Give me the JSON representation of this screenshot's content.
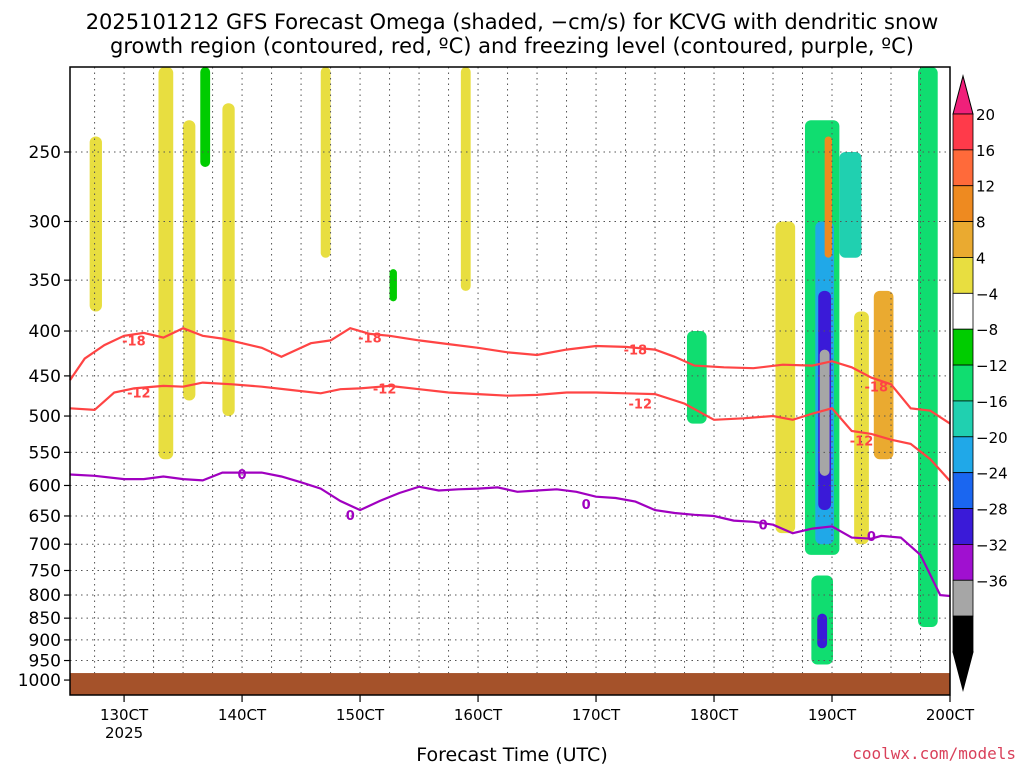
{
  "chart_data": {
    "type": "heatmap",
    "title_line1": "2025101212 GFS Forecast Omega (shaded, −cm/s) for KCVG with dendritic snow",
    "title_line2": "growth region (contoured, red, ºC) and freezing level (contoured, purple, ºC)",
    "xlabel": "Forecast Time (UTC)",
    "credit": "coolwx.com/models",
    "x_ticks": [
      {
        "label": "130CT",
        "sub": "2025",
        "hour": 12
      },
      {
        "label": "140CT",
        "sub": "",
        "hour": 36
      },
      {
        "label": "150CT",
        "sub": "",
        "hour": 60
      },
      {
        "label": "160CT",
        "sub": "",
        "hour": 84
      },
      {
        "label": "170CT",
        "sub": "",
        "hour": 108
      },
      {
        "label": "180CT",
        "sub": "",
        "hour": 132
      },
      {
        "label": "190CT",
        "sub": "",
        "hour": 156
      },
      {
        "label": "200CT",
        "sub": "",
        "hour": 180
      }
    ],
    "x_range_hours": [
      1,
      180
    ],
    "y_ticks": [
      "250",
      "300",
      "350",
      "400",
      "450",
      "500",
      "550",
      "600",
      "650",
      "700",
      "750",
      "800",
      "850",
      "900",
      "950",
      "1000"
    ],
    "y_range_hPa": [
      200,
      1040
    ],
    "colorbar": {
      "labels": [
        "20",
        "16",
        "12",
        "8",
        "4",
        "−4",
        "−8",
        "−12",
        "−16",
        "−20",
        "−24",
        "−28",
        "−32",
        "−36"
      ],
      "colors": [
        "#ff3a4a",
        "#ff6a3a",
        "#ee8a20",
        "#eaaa30",
        "#e8de40",
        "#ffffff",
        "#00cc00",
        "#10dd70",
        "#20d0b0",
        "#20a8e8",
        "#1a66f0",
        "#3a1ad8",
        "#a010d0",
        "#a6a6a6",
        "#000000"
      ],
      "top_arrow_color": "#f0207a",
      "bottom_arrow_color": "#000000"
    },
    "contours": [
      {
        "name": "dgz-minus18",
        "color": "#ff4444",
        "label": "-18",
        "points": [
          [
            1,
            455
          ],
          [
            4,
            430
          ],
          [
            8,
            415
          ],
          [
            12,
            405
          ],
          [
            16,
            402
          ],
          [
            20,
            407
          ],
          [
            24,
            397
          ],
          [
            28,
            405
          ],
          [
            32,
            408
          ],
          [
            36,
            413
          ],
          [
            40,
            418
          ],
          [
            44,
            428
          ],
          [
            46,
            423
          ],
          [
            50,
            413
          ],
          [
            54,
            410
          ],
          [
            58,
            397
          ],
          [
            62,
            403
          ],
          [
            66,
            405
          ],
          [
            72,
            410
          ],
          [
            78,
            414
          ],
          [
            84,
            418
          ],
          [
            90,
            423
          ],
          [
            96,
            426
          ],
          [
            102,
            420
          ],
          [
            108,
            416
          ],
          [
            114,
            417
          ],
          [
            120,
            420
          ],
          [
            124,
            428
          ],
          [
            128,
            438
          ],
          [
            134,
            440
          ],
          [
            140,
            441
          ],
          [
            146,
            437
          ],
          [
            152,
            438
          ],
          [
            156,
            433
          ],
          [
            160,
            440
          ],
          [
            164,
            452
          ],
          [
            168,
            460
          ],
          [
            172,
            490
          ],
          [
            176,
            493
          ],
          [
            180,
            510
          ]
        ],
        "label_points": [
          [
            14,
            410
          ],
          [
            62,
            407
          ],
          [
            116,
            420
          ],
          [
            165,
            463
          ]
        ]
      },
      {
        "name": "dgz-minus12",
        "color": "#ff4444",
        "label": "-12",
        "points": [
          [
            1,
            490
          ],
          [
            6,
            492
          ],
          [
            10,
            470
          ],
          [
            14,
            465
          ],
          [
            20,
            462
          ],
          [
            24,
            463
          ],
          [
            28,
            458
          ],
          [
            34,
            460
          ],
          [
            40,
            463
          ],
          [
            46,
            467
          ],
          [
            52,
            471
          ],
          [
            56,
            466
          ],
          [
            60,
            465
          ],
          [
            66,
            462
          ],
          [
            72,
            466
          ],
          [
            78,
            470
          ],
          [
            84,
            472
          ],
          [
            90,
            474
          ],
          [
            96,
            473
          ],
          [
            102,
            470
          ],
          [
            108,
            470
          ],
          [
            114,
            471
          ],
          [
            120,
            472
          ],
          [
            126,
            484
          ],
          [
            132,
            505
          ],
          [
            138,
            503
          ],
          [
            144,
            500
          ],
          [
            148,
            505
          ],
          [
            152,
            497
          ],
          [
            156,
            490
          ],
          [
            160,
            520
          ],
          [
            164,
            524
          ],
          [
            168,
            532
          ],
          [
            172,
            538
          ],
          [
            176,
            560
          ],
          [
            180,
            593
          ]
        ],
        "label_points": [
          [
            15,
            470
          ],
          [
            65,
            465
          ],
          [
            117,
            484
          ],
          [
            162,
            533
          ]
        ]
      },
      {
        "name": "freezing-level-0",
        "color": "#a000c0",
        "label": "0",
        "points": [
          [
            1,
            583
          ],
          [
            6,
            585
          ],
          [
            12,
            590
          ],
          [
            16,
            590
          ],
          [
            20,
            586
          ],
          [
            24,
            590
          ],
          [
            28,
            592
          ],
          [
            32,
            580
          ],
          [
            36,
            580
          ],
          [
            40,
            580
          ],
          [
            44,
            586
          ],
          [
            48,
            595
          ],
          [
            52,
            605
          ],
          [
            56,
            625
          ],
          [
            60,
            640
          ],
          [
            64,
            625
          ],
          [
            68,
            612
          ],
          [
            72,
            602
          ],
          [
            76,
            608
          ],
          [
            80,
            606
          ],
          [
            84,
            605
          ],
          [
            88,
            603
          ],
          [
            92,
            610
          ],
          [
            96,
            608
          ],
          [
            100,
            606
          ],
          [
            104,
            610
          ],
          [
            108,
            618
          ],
          [
            112,
            620
          ],
          [
            116,
            626
          ],
          [
            120,
            640
          ],
          [
            124,
            645
          ],
          [
            128,
            648
          ],
          [
            132,
            650
          ],
          [
            136,
            658
          ],
          [
            140,
            660
          ],
          [
            144,
            665
          ],
          [
            148,
            680
          ],
          [
            152,
            672
          ],
          [
            156,
            668
          ],
          [
            160,
            688
          ],
          [
            164,
            690
          ],
          [
            166,
            685
          ],
          [
            170,
            688
          ],
          [
            174,
            720
          ],
          [
            178,
            800
          ],
          [
            180,
            802
          ]
        ],
        "label_points": [
          [
            36,
            582
          ],
          [
            58,
            648
          ],
          [
            106,
            630
          ],
          [
            142,
            665
          ],
          [
            164,
            685
          ]
        ]
      }
    ],
    "omega_regions": [
      {
        "name": "strong-lift-cell-190ct",
        "value": -34,
        "t0": 153.5,
        "t1": 155.5,
        "p0": 420,
        "p1": 585
      },
      {
        "name": "lift-cell-core-190ct",
        "value": -26,
        "t0": 153.2,
        "t1": 155.8,
        "p0": 360,
        "p1": 640
      },
      {
        "name": "lift-cell-mid-190ct",
        "value": -18,
        "t0": 152.6,
        "t1": 156.4,
        "p0": 300,
        "p1": 700
      },
      {
        "name": "lift-cell-outer-190ct",
        "value": -10,
        "t0": 150.5,
        "t1": 157.5,
        "p0": 230,
        "p1": 720
      },
      {
        "name": "low-lift-cell-190ct",
        "value": -26,
        "t0": 153.0,
        "t1": 155.0,
        "p0": 840,
        "p1": 920
      },
      {
        "name": "low-lift-outer-190ct",
        "value": -12,
        "t0": 151.8,
        "t1": 156.2,
        "p0": 760,
        "p1": 960
      },
      {
        "name": "lift-cell-180ct",
        "value": -10,
        "t0": 126.5,
        "t1": 130.5,
        "p0": 400,
        "p1": 510
      },
      {
        "name": "lift-cell-195ct",
        "value": -14,
        "t0": 157.5,
        "t1": 162.0,
        "p0": 250,
        "p1": 330
      },
      {
        "name": "lift-cell-198ct",
        "value": -12,
        "t0": 173.5,
        "t1": 177.5,
        "p0": 200,
        "p1": 870
      },
      {
        "name": "sink-cell-190ct-upper",
        "value": 12,
        "t0": 154.5,
        "t1": 156.0,
        "p0": 240,
        "p1": 330
      },
      {
        "name": "sink-cell-185ct",
        "value": 6,
        "t0": 144.5,
        "t1": 148.5,
        "p0": 300,
        "p1": 680
      },
      {
        "name": "sink-cell-193ct",
        "value": 6,
        "t0": 160.5,
        "t1": 163.5,
        "p0": 380,
        "p1": 700
      },
      {
        "name": "sink-cell-196ct",
        "value": 8,
        "t0": 164.5,
        "t1": 168.5,
        "p0": 360,
        "p1": 560
      },
      {
        "name": "sink-streak-135ct",
        "value": 5,
        "t0": 19.0,
        "t1": 22.0,
        "p0": 200,
        "p1": 560
      },
      {
        "name": "sink-streak-137ct",
        "value": 5,
        "t0": 24.0,
        "t1": 26.5,
        "p0": 230,
        "p1": 480
      },
      {
        "name": "sink-streak-140ct",
        "value": 6,
        "t0": 32.0,
        "t1": 34.5,
        "p0": 220,
        "p1": 500
      },
      {
        "name": "sink-streak-148ct",
        "value": 5,
        "t0": 52.0,
        "t1": 54.0,
        "p0": 200,
        "p1": 330
      },
      {
        "name": "sink-streak-158ct",
        "value": 5,
        "t0": 80.5,
        "t1": 82.5,
        "p0": 200,
        "p1": 360
      },
      {
        "name": "sink-streak-129ct",
        "value": 5,
        "t0": 5.0,
        "t1": 7.5,
        "p0": 240,
        "p1": 380
      },
      {
        "name": "lift-streak-137ct",
        "value": -6,
        "t0": 27.5,
        "t1": 29.5,
        "p0": 200,
        "p1": 260
      },
      {
        "name": "lift-streak-153ct",
        "value": -6,
        "t0": 66.0,
        "t1": 67.5,
        "p0": 340,
        "p1": 370
      }
    ],
    "surface_color": "#a5522a"
  }
}
